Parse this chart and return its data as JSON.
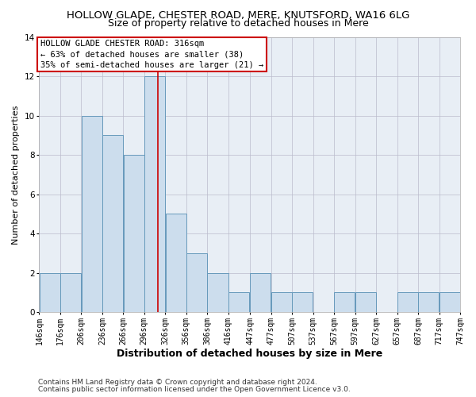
{
  "title": "HOLLOW GLADE, CHESTER ROAD, MERE, KNUTSFORD, WA16 6LG",
  "subtitle": "Size of property relative to detached houses in Mere",
  "xlabel": "Distribution of detached houses by size in Mere",
  "ylabel": "Number of detached properties",
  "footnote1": "Contains HM Land Registry data © Crown copyright and database right 2024.",
  "footnote2": "Contains public sector information licensed under the Open Government Licence v3.0.",
  "annotation_line1": "HOLLOW GLADE CHESTER ROAD: 316sqm",
  "annotation_line2": "← 63% of detached houses are smaller (38)",
  "annotation_line3": "35% of semi-detached houses are larger (21) →",
  "bar_edges": [
    146,
    176,
    206,
    236,
    266,
    296,
    326,
    356,
    386,
    416,
    447,
    477,
    507,
    537,
    567,
    597,
    627,
    657,
    687,
    717,
    747
  ],
  "bar_heights": [
    2,
    2,
    10,
    9,
    8,
    12,
    5,
    3,
    2,
    1,
    2,
    1,
    1,
    0,
    1,
    1,
    0,
    1,
    1,
    1
  ],
  "bar_color": "#ccdded",
  "bar_edge_color": "#6699bb",
  "reference_line_x": 316,
  "reference_line_color": "#cc0000",
  "ylim": [
    0,
    14
  ],
  "yticks": [
    0,
    2,
    4,
    6,
    8,
    10,
    12,
    14
  ],
  "bg_color": "#ffffff",
  "plot_bg_color": "#e8eef5",
  "annotation_box_color": "#ffffff",
  "annotation_box_edge": "#cc0000",
  "title_fontsize": 9.5,
  "subtitle_fontsize": 9,
  "xlabel_fontsize": 9,
  "ylabel_fontsize": 8,
  "tick_fontsize": 7,
  "annotation_fontsize": 7.5,
  "footnote_fontsize": 6.5
}
